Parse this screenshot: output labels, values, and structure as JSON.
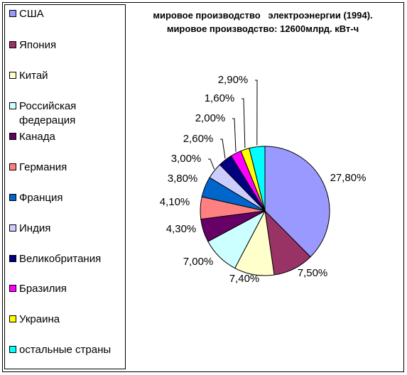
{
  "chart_data": {
    "type": "pie",
    "title": "мировое производство   электроэнергии (1994).",
    "subtitle": "мировое производство: 12600млрд. кВт-ч",
    "legend_position": "left",
    "slices": [
      {
        "name": "США",
        "value": 27.8,
        "label": "27,80%",
        "color": "#9999FF"
      },
      {
        "name": "Япония",
        "value": 7.5,
        "label": "7,50%",
        "color": "#993366"
      },
      {
        "name": "Китай",
        "value": 7.4,
        "label": "7,40%",
        "color": "#FFFFCC"
      },
      {
        "name": "Российская\nфедерация",
        "value": 7.0,
        "label": "7,00%",
        "color": "#CCFFFF"
      },
      {
        "name": "Канада",
        "value": 4.3,
        "label": "4,30%",
        "color": "#660066"
      },
      {
        "name": "Германия",
        "value": 4.1,
        "label": "4,10%",
        "color": "#FF8080"
      },
      {
        "name": "Франция",
        "value": 3.8,
        "label": "3,80%",
        "color": "#0066CC"
      },
      {
        "name": "Индия",
        "value": 3.0,
        "label": "3,00%",
        "color": "#CCCCFF"
      },
      {
        "name": "Великобритания",
        "value": 2.6,
        "label": "2,60%",
        "color": "#000080"
      },
      {
        "name": "Бразилия",
        "value": 2.0,
        "label": "2,00%",
        "color": "#FF00FF"
      },
      {
        "name": "Украина",
        "value": 1.6,
        "label": "1,60%",
        "color": "#FFFF00"
      },
      {
        "name": "остальные страны",
        "value": 2.9,
        "label": "2,90%",
        "color": "#00FFFF"
      }
    ]
  }
}
